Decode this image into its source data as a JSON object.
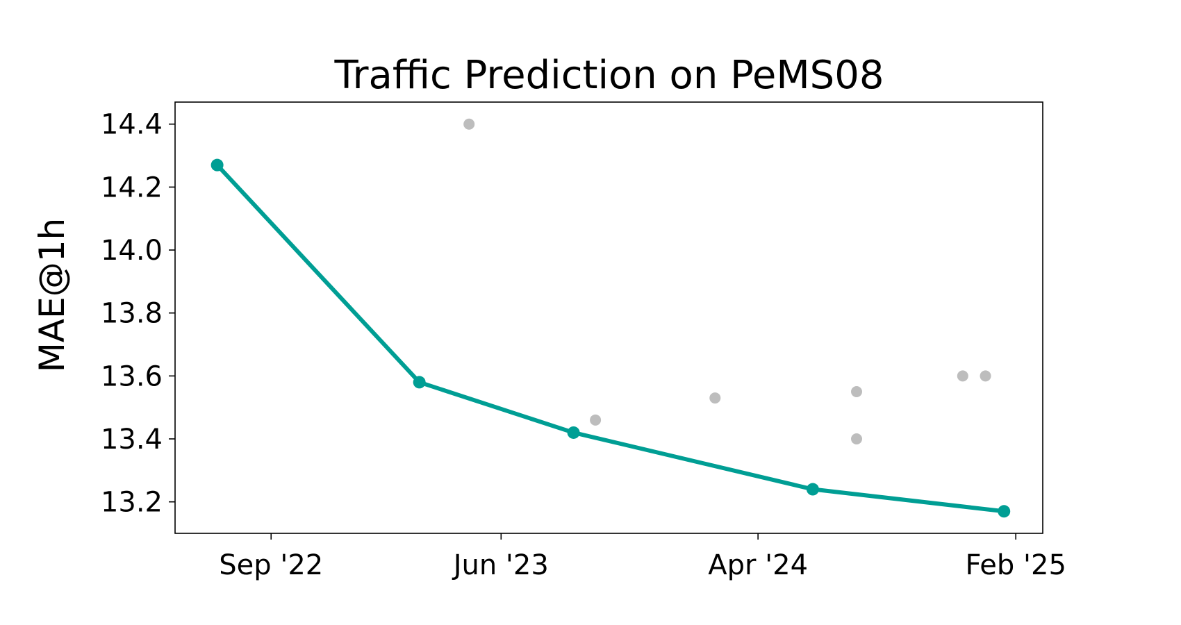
{
  "chart_data": {
    "type": "scatter",
    "title": "Traffic Prediction on PeMS08",
    "xlabel": "",
    "ylabel": "MAE@1h",
    "x_axis": "date",
    "xlim": [
      "2022-05-10",
      "2025-03-05"
    ],
    "ylim": [
      13.1,
      14.47
    ],
    "x_ticks": [
      {
        "date": "2022-09-01",
        "label": "Sep '22"
      },
      {
        "date": "2023-06-01",
        "label": "Jun '23"
      },
      {
        "date": "2024-04-01",
        "label": "Apr '24"
      },
      {
        "date": "2025-02-01",
        "label": "Feb '25"
      }
    ],
    "y_ticks": [
      {
        "value": 13.2,
        "label": "13.2"
      },
      {
        "value": 13.4,
        "label": "13.4"
      },
      {
        "value": 13.6,
        "label": "13.6"
      },
      {
        "value": 13.8,
        "label": "13.8"
      },
      {
        "value": 14.0,
        "label": "14.0"
      },
      {
        "value": 14.2,
        "label": "14.2"
      },
      {
        "value": 14.4,
        "label": "14.4"
      }
    ],
    "grid": false,
    "series": [
      {
        "role": "best-so-far line",
        "color": "#009E94",
        "points": [
          {
            "x": "2022-06-29",
            "y": 14.27
          },
          {
            "x": "2023-02-24",
            "y": 13.58
          },
          {
            "x": "2023-08-26",
            "y": 13.42
          },
          {
            "x": "2024-06-05",
            "y": 13.24
          },
          {
            "x": "2025-01-18",
            "y": 13.17
          }
        ]
      },
      {
        "role": "other results",
        "color": "#BDBDBD",
        "points": [
          {
            "x": "2023-04-24",
            "y": 14.4
          },
          {
            "x": "2023-09-21",
            "y": 13.46
          },
          {
            "x": "2024-02-10",
            "y": 13.53
          },
          {
            "x": "2024-07-27",
            "y": 13.55
          },
          {
            "x": "2024-07-27",
            "y": 13.4
          },
          {
            "x": "2024-11-30",
            "y": 13.6
          },
          {
            "x": "2024-12-27",
            "y": 13.6
          }
        ]
      }
    ]
  }
}
